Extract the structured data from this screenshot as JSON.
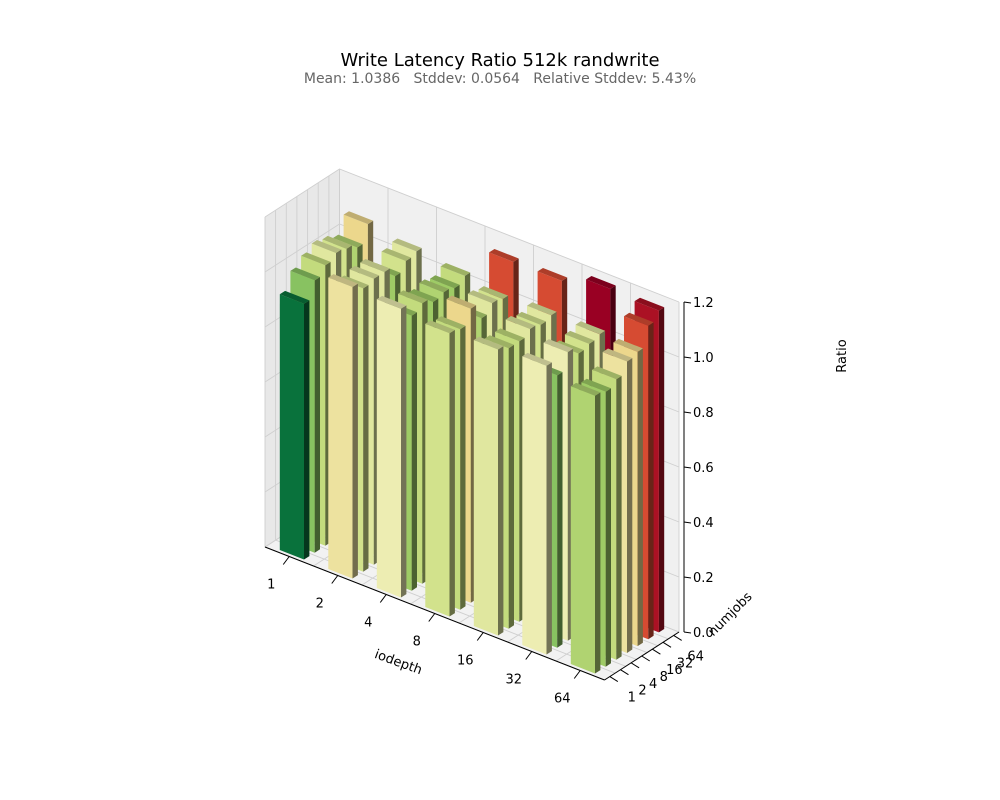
{
  "figure": {
    "title": "Write Latency Ratio 512k randwrite",
    "subtitle": "Mean: 1.0386   Stddev: 0.0564   Relative Stddev: 5.43%"
  },
  "chart_data": {
    "type": "bar3d",
    "title": "Write Latency Ratio 512k randwrite",
    "xlabel": "iodepth",
    "ylabel": "numjobs",
    "zlabel": "Ratio",
    "x_categories": [
      "1",
      "2",
      "4",
      "8",
      "16",
      "32",
      "64"
    ],
    "y_categories": [
      "1",
      "2",
      "4",
      "8",
      "16",
      "32",
      "64"
    ],
    "zlim": [
      0,
      1.2
    ],
    "z_ticks": [
      "0.0",
      "0.2",
      "0.4",
      "0.6",
      "0.8",
      "1.0",
      "1.2"
    ],
    "colormap": "RdYlGn_r",
    "color_range": [
      0.92,
      1.18
    ],
    "values": [
      [
        0.93,
        1.06,
        1.05,
        1.03,
        1.04,
        1.05,
        1.01
      ],
      [
        0.99,
        1.03,
        1.0,
        1.02,
        1.02,
        0.99,
        1.0
      ],
      [
        1.02,
        1.04,
        1.02,
        1.07,
        1.02,
        1.05,
        1.02
      ],
      [
        1.04,
        1.04,
        1.0,
        1.01,
        1.04,
        1.02,
        1.06
      ],
      [
        1.03,
        1.0,
        1.01,
        1.04,
        1.03,
        1.03,
        1.07
      ],
      [
        1.01,
        1.03,
        1.0,
        1.03,
        1.04,
        1.04,
        1.14
      ],
      [
        1.07,
        1.04,
        1.02,
        1.14,
        1.14,
        1.18,
        1.17
      ]
    ]
  }
}
